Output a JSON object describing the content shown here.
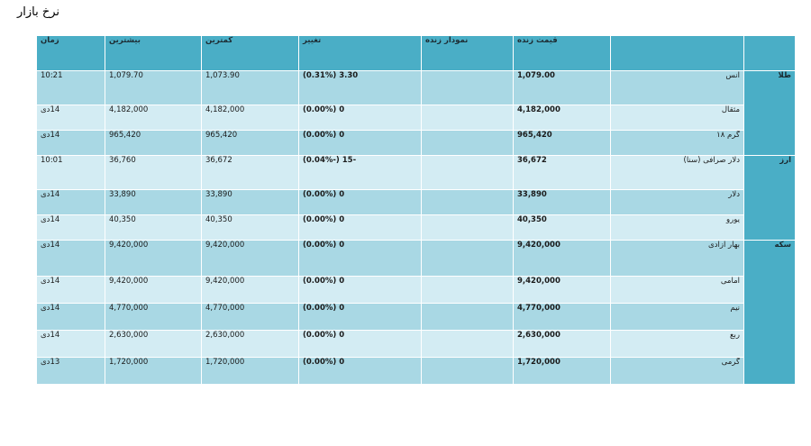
{
  "page_title": "نرخ بازار",
  "headers": {
    "group": "",
    "name": "",
    "price": "قیمت زنده",
    "chart": "نمودار زنده",
    "change": "تغییر",
    "low": "کمترین",
    "high": "بیشترین",
    "time": "زمان"
  },
  "groups": [
    {
      "label": "طلا",
      "rows": [
        {
          "name": "انس",
          "price": "1,079.00",
          "change": "3.30 (0.31%)",
          "low": "1,073.90",
          "high": "1,079.70",
          "time": "10:21"
        },
        {
          "name": "مثقال",
          "price": "4,182,000",
          "change": "0 (0.00%)",
          "low": "4,182,000",
          "high": "4,182,000",
          "time": "14دی"
        },
        {
          "name": "گرم ۱۸",
          "price": "965,420",
          "change": "0 (0.00%)",
          "low": "965,420",
          "high": "965,420",
          "time": "14دی"
        }
      ]
    },
    {
      "label": "ارز",
      "rows": [
        {
          "name": "دلار صرافی (سنا)",
          "price": "36,672",
          "change": "-15 (-0.04%)",
          "low": "36,672",
          "high": "36,760",
          "time": "10:01"
        },
        {
          "name": "دلار",
          "price": "33,890",
          "change": "0 (0.00%)",
          "low": "33,890",
          "high": "33,890",
          "time": "14دی"
        },
        {
          "name": "یورو",
          "price": "40,350",
          "change": "0 (0.00%)",
          "low": "40,350",
          "high": "40,350",
          "time": "14دی"
        }
      ]
    },
    {
      "label": "سکه",
      "rows": [
        {
          "name": "بهار آزادی",
          "price": "9,420,000",
          "change": "0 (0.00%)",
          "low": "9,420,000",
          "high": "9,420,000",
          "time": "14دی"
        },
        {
          "name": "امامی",
          "price": "9,420,000",
          "change": "0 (0.00%)",
          "low": "9,420,000",
          "high": "9,420,000",
          "time": "14دی"
        },
        {
          "name": "نیم",
          "price": "4,770,000",
          "change": "0 (0.00%)",
          "low": "4,770,000",
          "high": "4,770,000",
          "time": "14دی"
        },
        {
          "name": "ربع",
          "price": "2,630,000",
          "change": "0 (0.00%)",
          "low": "2,630,000",
          "high": "2,630,000",
          "time": "14دی"
        },
        {
          "name": "گرمی",
          "price": "1,720,000",
          "change": "0 (0.00%)",
          "low": "1,720,000",
          "high": "1,720,000",
          "time": "13دی"
        }
      ]
    }
  ],
  "colors": {
    "header": "#4aaec6",
    "row_dark": "#a9d8e4",
    "row_light": "#d3ecf3"
  }
}
